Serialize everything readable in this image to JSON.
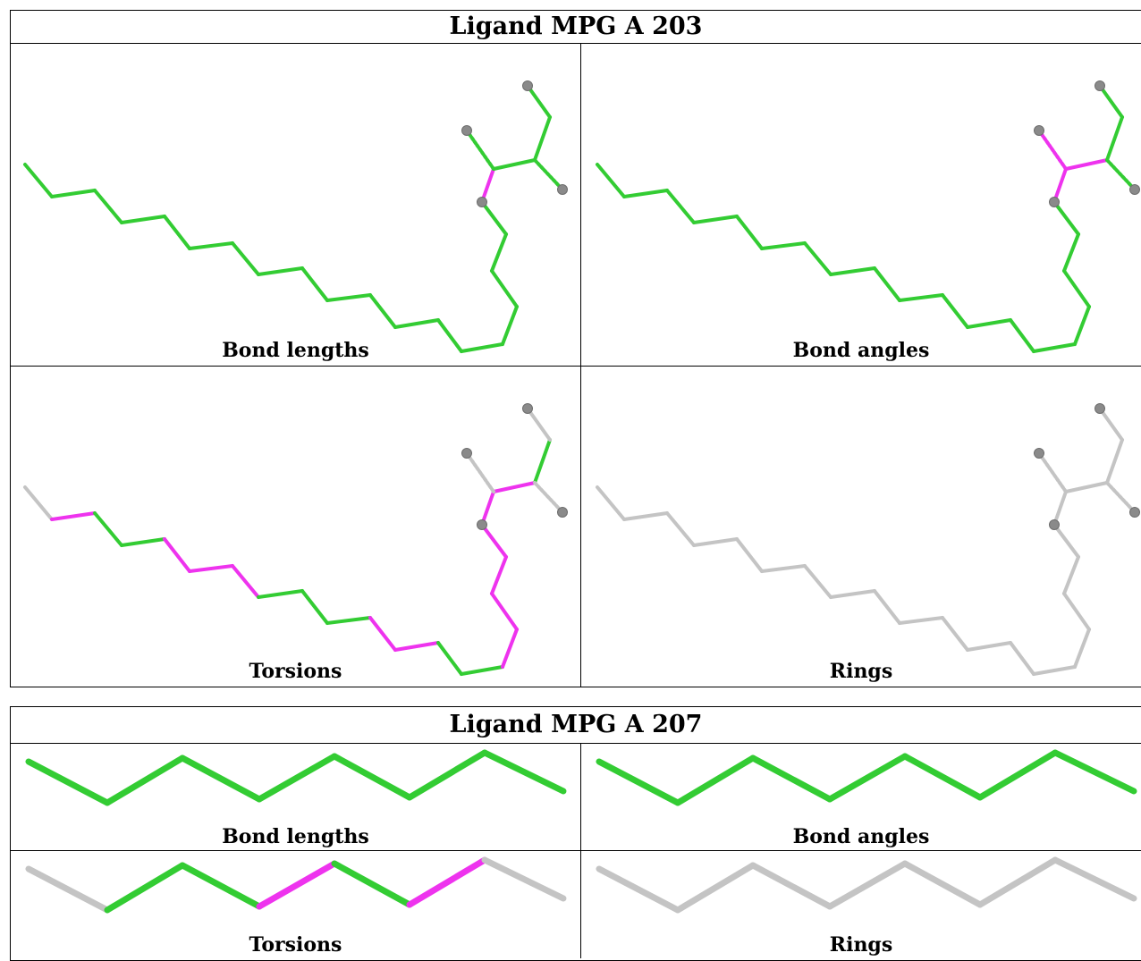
{
  "colors": {
    "ok": "#33cc33",
    "outlier": "#ee33ee",
    "na": "#c4c4c4",
    "atom": "#8a8a8a"
  },
  "ligands": [
    {
      "title": "Ligand MPG A 203",
      "panels": {
        "bond_lengths": {
          "label": "Bond lengths"
        },
        "bond_angles": {
          "label": "Bond angles"
        },
        "torsions": {
          "label": "Torsions"
        },
        "rings": {
          "label": "Rings"
        }
      }
    },
    {
      "title": "Ligand MPG A 207",
      "panels": {
        "bond_lengths": {
          "label": "Bond lengths"
        },
        "bond_angles": {
          "label": "Bond angles"
        },
        "torsions": {
          "label": "Torsions"
        },
        "rings": {
          "label": "Rings"
        }
      }
    }
  ]
}
